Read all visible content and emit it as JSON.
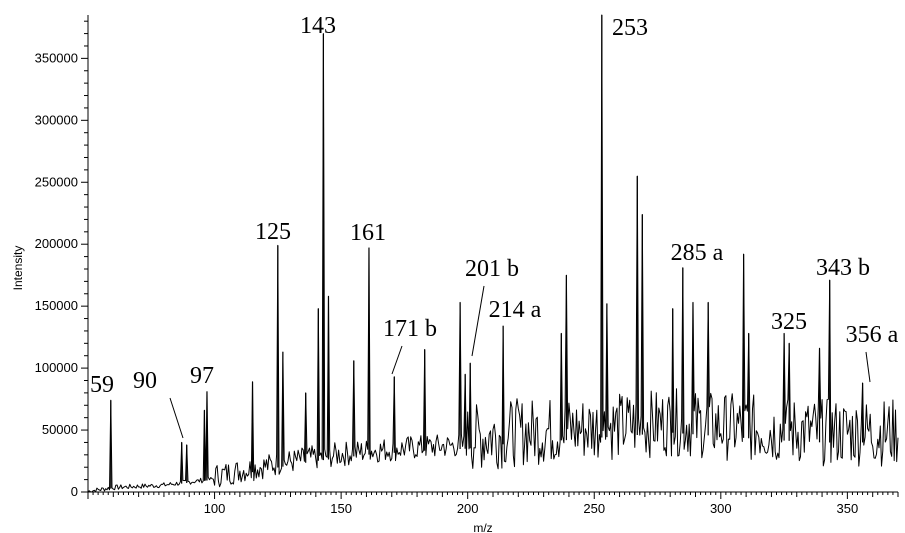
{
  "chart_data": {
    "type": "line",
    "title": "",
    "xlabel": "m/z",
    "ylabel": "Intensity",
    "xlim": [
      50,
      370
    ],
    "ylim": [
      0,
      385000
    ],
    "x_ticks": [
      100,
      150,
      200,
      250,
      300,
      350
    ],
    "y_ticks": [
      0,
      50000,
      100000,
      150000,
      200000,
      250000,
      300000,
      350000
    ],
    "grid": false,
    "legend": "none",
    "line_color": "#000000",
    "peaks": [
      {
        "x": 59,
        "y": 74000
      },
      {
        "x": 87,
        "y": 40000
      },
      {
        "x": 89,
        "y": 38000
      },
      {
        "x": 96,
        "y": 66000
      },
      {
        "x": 97,
        "y": 81000
      },
      {
        "x": 115,
        "y": 89000
      },
      {
        "x": 125,
        "y": 199000
      },
      {
        "x": 127,
        "y": 113000
      },
      {
        "x": 136,
        "y": 80000
      },
      {
        "x": 141,
        "y": 148000
      },
      {
        "x": 143,
        "y": 370000
      },
      {
        "x": 145,
        "y": 158000
      },
      {
        "x": 155,
        "y": 106000
      },
      {
        "x": 161,
        "y": 197000
      },
      {
        "x": 171,
        "y": 93000
      },
      {
        "x": 183,
        "y": 115000
      },
      {
        "x": 197,
        "y": 153000
      },
      {
        "x": 199,
        "y": 95000
      },
      {
        "x": 201,
        "y": 104000
      },
      {
        "x": 214,
        "y": 134000
      },
      {
        "x": 237,
        "y": 128000
      },
      {
        "x": 239,
        "y": 175000
      },
      {
        "x": 253,
        "y": 385000
      },
      {
        "x": 255,
        "y": 152000
      },
      {
        "x": 267,
        "y": 255000
      },
      {
        "x": 269,
        "y": 224000
      },
      {
        "x": 281,
        "y": 148000
      },
      {
        "x": 285,
        "y": 181000
      },
      {
        "x": 289,
        "y": 153000
      },
      {
        "x": 295,
        "y": 153000
      },
      {
        "x": 309,
        "y": 192000
      },
      {
        "x": 311,
        "y": 128000
      },
      {
        "x": 325,
        "y": 128000
      },
      {
        "x": 327,
        "y": 120000
      },
      {
        "x": 339,
        "y": 116000
      },
      {
        "x": 343,
        "y": 171000
      },
      {
        "x": 356,
        "y": 88000
      }
    ],
    "baseline": [
      {
        "x": 50,
        "y": 0
      },
      {
        "x": 60,
        "y": 3000
      },
      {
        "x": 80,
        "y": 5000
      },
      {
        "x": 100,
        "y": 10000
      },
      {
        "x": 120,
        "y": 18000
      },
      {
        "x": 140,
        "y": 25000
      },
      {
        "x": 160,
        "y": 30000
      },
      {
        "x": 180,
        "y": 33000
      },
      {
        "x": 200,
        "y": 35000
      },
      {
        "x": 220,
        "y": 40000
      },
      {
        "x": 240,
        "y": 42000
      },
      {
        "x": 260,
        "y": 45000
      },
      {
        "x": 280,
        "y": 48000
      },
      {
        "x": 300,
        "y": 45000
      },
      {
        "x": 320,
        "y": 42000
      },
      {
        "x": 340,
        "y": 40000
      },
      {
        "x": 370,
        "y": 40000
      }
    ],
    "annotations": [
      {
        "text": "59",
        "x": 59,
        "y": 74000
      },
      {
        "text": "90",
        "x": 88,
        "y": 40000
      },
      {
        "text": "97",
        "x": 97,
        "y": 81000
      },
      {
        "text": "125",
        "x": 125,
        "y": 199000
      },
      {
        "text": "143",
        "x": 143,
        "y": 370000
      },
      {
        "text": "161",
        "x": 161,
        "y": 197000
      },
      {
        "text": "171 b",
        "x": 171,
        "y": 93000
      },
      {
        "text": "201 b",
        "x": 201,
        "y": 104000
      },
      {
        "text": "214 a",
        "x": 214,
        "y": 134000
      },
      {
        "text": "253",
        "x": 253,
        "y": 385000
      },
      {
        "text": "285 a",
        "x": 285,
        "y": 181000
      },
      {
        "text": "325",
        "x": 325,
        "y": 128000
      },
      {
        "text": "343 b",
        "x": 343,
        "y": 171000
      },
      {
        "text": "356 a",
        "x": 356,
        "y": 88000
      }
    ]
  }
}
